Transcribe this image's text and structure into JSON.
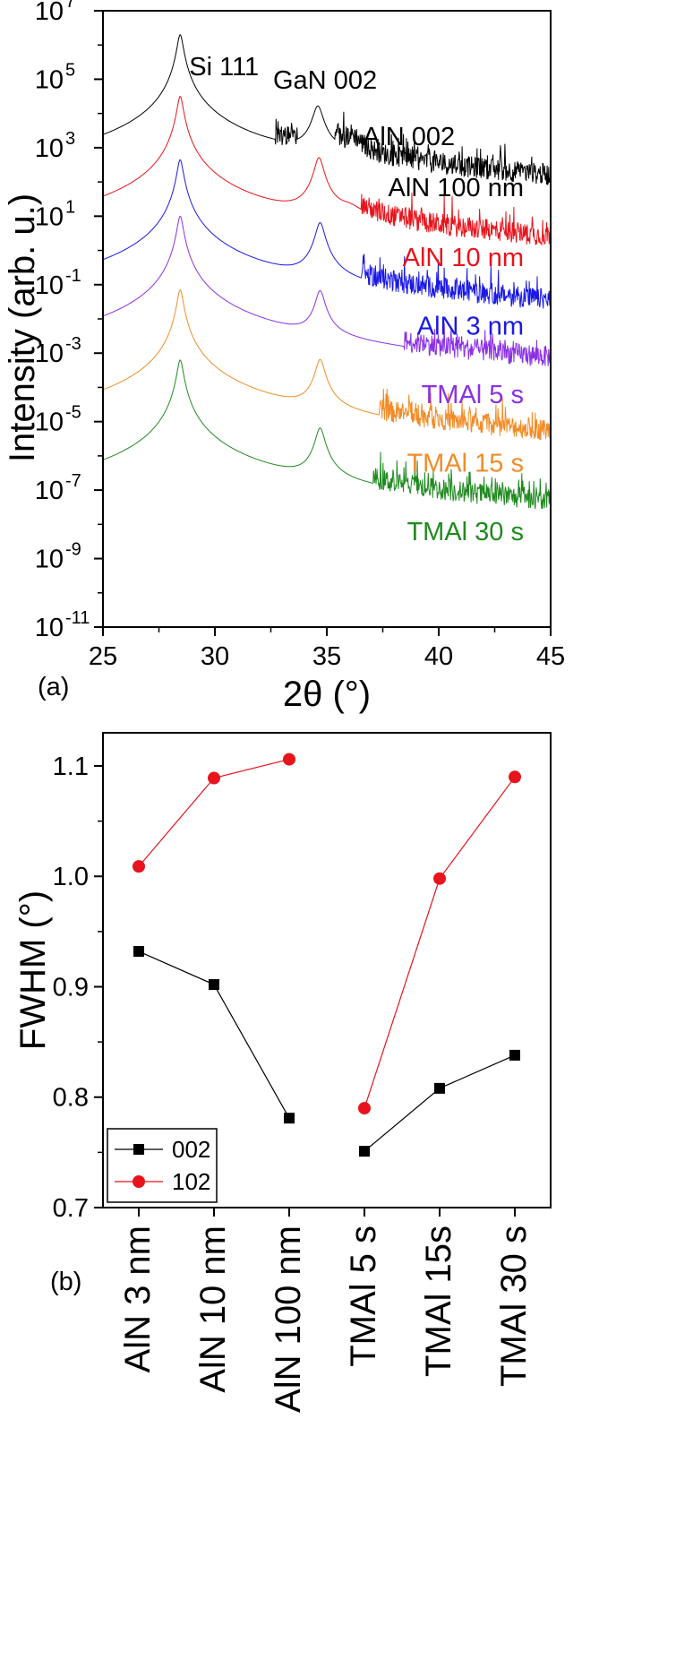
{
  "chart_data": [
    {
      "type": "line",
      "panel": "(a)",
      "title": "",
      "xlabel": "2θ (°)",
      "ylabel": "Intensity (arb. u.)",
      "yscale": "log",
      "xlim": [
        25,
        45
      ],
      "ylim_exp": [
        -11,
        7
      ],
      "xticks": [
        25,
        30,
        35,
        40,
        45
      ],
      "xtick_labels": [
        "25",
        "30",
        "35",
        "40",
        "45"
      ],
      "yticks_exp": [
        -11,
        -9,
        -7,
        -5,
        -3,
        -1,
        1,
        3,
        5,
        7
      ],
      "ytick_base": "10",
      "ytick_exponents": [
        "-11",
        "-9",
        "-7",
        "-5",
        "-3",
        "-1",
        "1",
        "3",
        "5",
        "7"
      ],
      "annotations": [
        {
          "text": "Si 111",
          "x": 28.45,
          "log_y": 6.3
        },
        {
          "text": "GaN 002",
          "x": 34.6,
          "log_y": 4.85
        },
        {
          "text": "AlN 002",
          "x": 36.2,
          "log_y": 3.2
        }
      ],
      "series": [
        {
          "name": "AlN 100 nm",
          "color": "#000000",
          "base_log": 0.25,
          "peaks": [
            {
              "x": 28.45,
              "h": 6.3,
              "w": 0.12
            },
            {
              "x": 34.6,
              "h": 4.2,
              "w": 0.2
            },
            {
              "x": 36.15,
              "h": 3.0,
              "w": 0.32
            }
          ]
        },
        {
          "name": "AlN 10 nm",
          "color": "#e8131b",
          "base_log": -1.8,
          "peaks": [
            {
              "x": 28.45,
              "h": 4.5,
              "w": 0.12
            },
            {
              "x": 34.65,
              "h": 2.7,
              "w": 0.18
            },
            {
              "x": 36.0,
              "h": 0.9,
              "w": 0.6
            }
          ]
        },
        {
          "name": "AlN 3 nm",
          "color": "#1a18e6",
          "base_log": -3.8,
          "peaks": [
            {
              "x": 28.45,
              "h": 2.65,
              "w": 0.12
            },
            {
              "x": 34.7,
              "h": 0.8,
              "w": 0.18
            }
          ]
        },
        {
          "name": "TMAl 5 s",
          "color": "#8b2fe6",
          "base_log": -5.8,
          "peaks": [
            {
              "x": 28.45,
              "h": 1.0,
              "w": 0.12
            },
            {
              "x": 34.7,
              "h": -1.2,
              "w": 0.18
            }
          ]
        },
        {
          "name": "TMAl 15 s",
          "color": "#f28c28",
          "base_log": -7.8,
          "peaks": [
            {
              "x": 28.45,
              "h": -1.15,
              "w": 0.12
            },
            {
              "x": 34.7,
              "h": -3.2,
              "w": 0.18
            }
          ]
        },
        {
          "name": "TMAl 30 s",
          "color": "#1f8a1f",
          "base_log": -9.8,
          "peaks": [
            {
              "x": 28.45,
              "h": -3.2,
              "w": 0.12
            },
            {
              "x": 34.7,
              "h": -5.2,
              "w": 0.18
            }
          ]
        }
      ]
    },
    {
      "type": "line",
      "panel": "(b)",
      "title": "",
      "xlabel": "",
      "ylabel": "FWHM (°)",
      "ylim": [
        0.7,
        1.13
      ],
      "yticks": [
        0.7,
        0.8,
        0.9,
        1.0,
        1.1
      ],
      "ytick_labels": [
        "0.7",
        "0.8",
        "0.9",
        "1.0",
        "1.1"
      ],
      "categories": [
        "AlN 3 nm",
        "AlN 10 nm",
        "AlN 100 nm",
        "TMAl 5 s",
        "TMAl 15s",
        "TMAl 30 s"
      ],
      "series": [
        {
          "name": "002",
          "color": "#000000",
          "marker": "square",
          "segments": [
            [
              0.932,
              0.902,
              0.781
            ],
            [
              0.751,
              0.808,
              0.838
            ]
          ]
        },
        {
          "name": "102",
          "color": "#e8131b",
          "marker": "circle",
          "segments": [
            [
              1.009,
              1.089,
              1.106
            ],
            [
              0.79,
              0.998,
              1.09
            ]
          ]
        }
      ],
      "legend": "bottom-left"
    }
  ]
}
